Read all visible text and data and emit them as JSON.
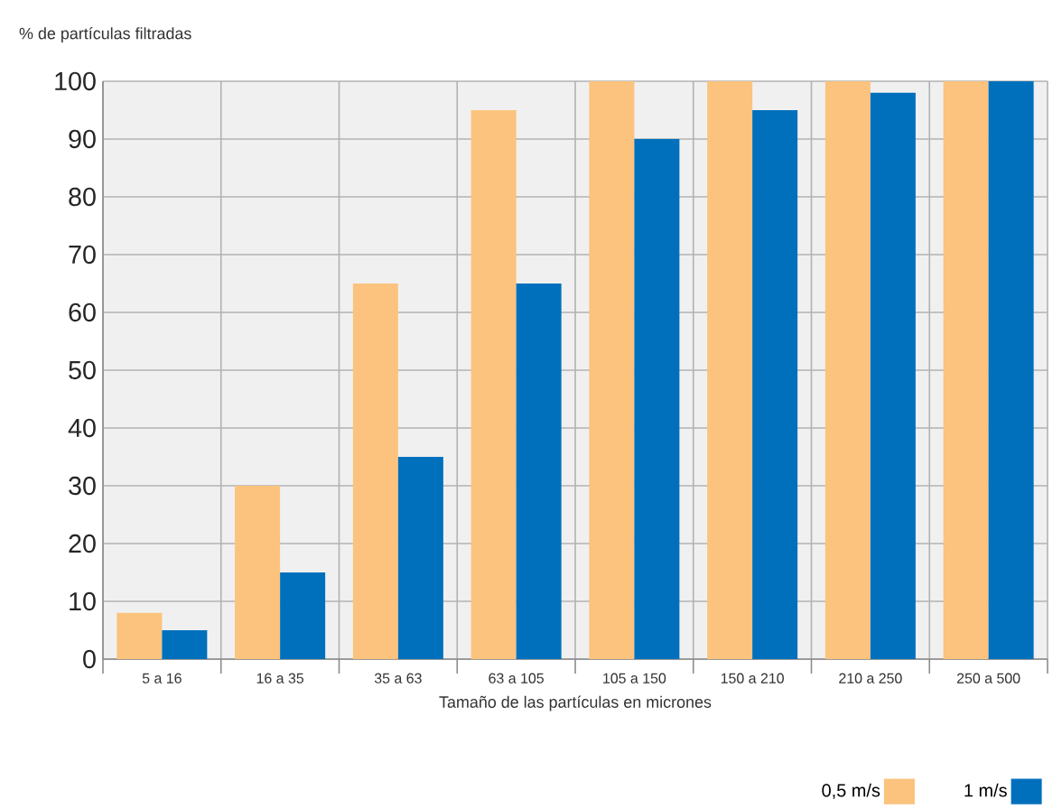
{
  "chart_data": {
    "type": "bar",
    "ylabel": "% de partículas filtradas",
    "xlabel": "Tamaño de las partículas en micrones",
    "categories": [
      "5 a 16",
      "16 a 35",
      "35 a 63",
      "63 a 105",
      "105 a 150",
      "150 a 210",
      "210 a 250",
      "250 a 500"
    ],
    "series": [
      {
        "name": "0,5 m/s",
        "color": "#fbc37d",
        "values": [
          8,
          30,
          65,
          95,
          100,
          100,
          100,
          100
        ]
      },
      {
        "name": "1 m/s",
        "color": "#0070bd",
        "values": [
          5,
          15,
          35,
          65,
          90,
          95,
          98,
          100
        ]
      }
    ],
    "ylim": [
      0,
      100
    ],
    "yticks": [
      0,
      10,
      20,
      30,
      40,
      50,
      60,
      70,
      80,
      90,
      100
    ],
    "grid": true,
    "legend": "bottom right"
  }
}
